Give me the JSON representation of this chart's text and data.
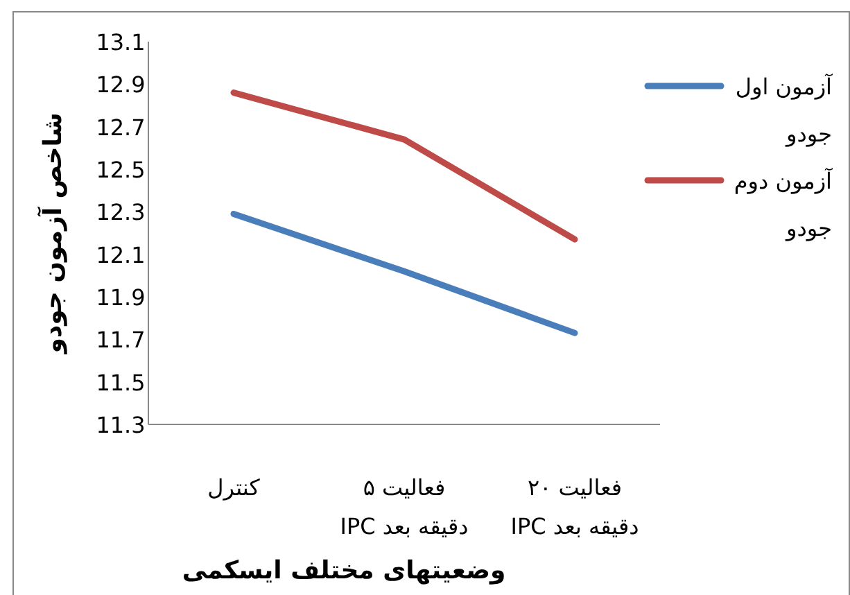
{
  "chart_data": {
    "type": "line",
    "xlabel": "وضعیتهای مختلف ایسکمی",
    "ylabel": "شاخص آزمون جودو",
    "categories": [
      "کنترل",
      "فعالیت ۵ دقیقه بعد IPC",
      "فعالیت ۲۰ دقیقه بعد IPC"
    ],
    "series": [
      {
        "name": "آزمون اول جودو",
        "color": "#4a7ebb",
        "values": [
          12.29,
          12.02,
          11.73
        ]
      },
      {
        "name": "آزمون دوم جودو",
        "color": "#be4b48",
        "values": [
          12.86,
          12.64,
          12.17
        ]
      }
    ],
    "ylim": [
      11.3,
      13.1
    ],
    "yticks": [
      {
        "value": 11.3,
        "label": "11.3"
      },
      {
        "value": 11.5,
        "label": "11.5"
      },
      {
        "value": 11.7,
        "label": "11.7"
      },
      {
        "value": 11.9,
        "label": "11.9"
      },
      {
        "value": 12.1,
        "label": "12.1"
      },
      {
        "value": 12.3,
        "label": "12.3"
      },
      {
        "value": 12.5,
        "label": "12.5"
      },
      {
        "value": 12.7,
        "label": "12.7"
      },
      {
        "value": 12.9,
        "label": "12.9"
      },
      {
        "value": 13.1,
        "label": "13.1"
      }
    ],
    "legend": "right",
    "grid": false,
    "line_style": "solid"
  }
}
